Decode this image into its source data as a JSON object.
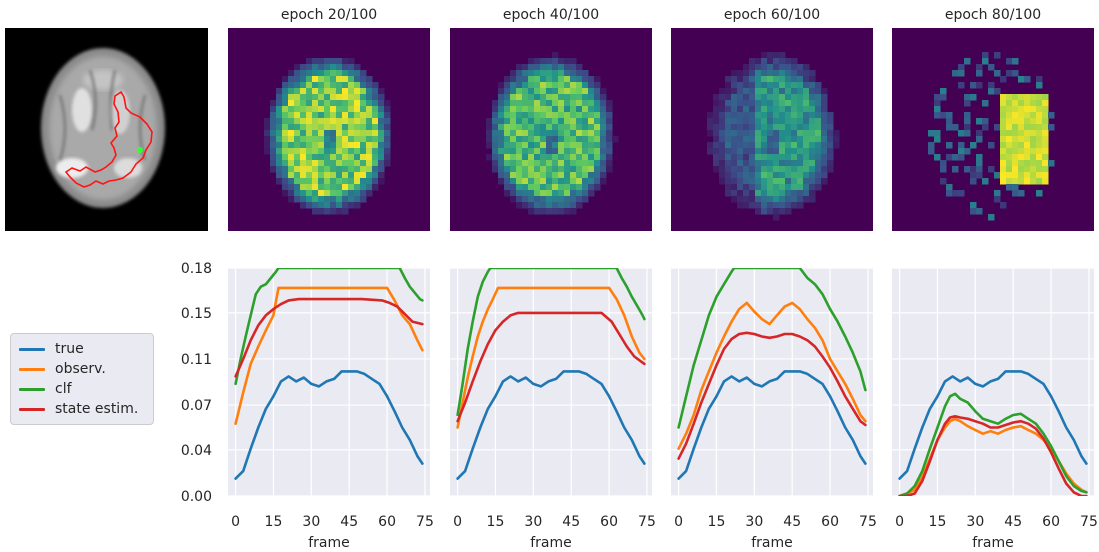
{
  "colors": {
    "true": "#1f77b4",
    "observ": "#ff7f0e",
    "clf": "#2ca02c",
    "state": "#d62728",
    "panel_bg": "#eaeaf2",
    "heat_bg": "#440154",
    "heat_hi": "#fde725"
  },
  "legend": [
    "true",
    "observ.",
    "clf",
    "state estim."
  ],
  "mri": {
    "icons": [
      "brain-mri-image",
      "tumor-contour-red",
      "seed-point-green"
    ]
  },
  "heatmaps": [
    {
      "title": "epoch 20/100"
    },
    {
      "title": "epoch 40/100"
    },
    {
      "title": "epoch 60/100"
    },
    {
      "title": "epoch 80/100"
    }
  ],
  "chart_data": {
    "type": "line",
    "xlabel": "frame",
    "xticks": [
      0,
      15,
      30,
      45,
      60,
      75
    ],
    "xlim": [
      -3,
      77
    ],
    "yticks": [
      "0.00",
      "0.04",
      "0.07",
      "0.11",
      "0.15",
      "0.18"
    ],
    "ytick_values": [
      0.0,
      0.037,
      0.073,
      0.11,
      0.147,
      0.183
    ],
    "ylim": [
      0,
      0.183
    ],
    "grid": true,
    "legend_position": "left",
    "panels": [
      {
        "series": [
          {
            "name": "true",
            "x": [
              0,
              3,
              6,
              9,
              12,
              15,
              18,
              21,
              24,
              27,
              30,
              33,
              36,
              39,
              42,
              45,
              48,
              51,
              54,
              57,
              60,
              63,
              66,
              69,
              72,
              74
            ],
            "y": [
              0.014,
              0.02,
              0.038,
              0.055,
              0.07,
              0.08,
              0.092,
              0.096,
              0.092,
              0.095,
              0.09,
              0.088,
              0.092,
              0.094,
              0.1,
              0.1,
              0.1,
              0.098,
              0.094,
              0.09,
              0.08,
              0.068,
              0.055,
              0.045,
              0.032,
              0.026
            ]
          },
          {
            "name": "observ.",
            "x": [
              0,
              3,
              6,
              9,
              12,
              15,
              17,
              20,
              30,
              40,
              50,
              60,
              63,
              66,
              69,
              72,
              74
            ],
            "y": [
              0.058,
              0.083,
              0.106,
              0.12,
              0.133,
              0.145,
              0.167,
              0.167,
              0.167,
              0.167,
              0.167,
              0.167,
              0.157,
              0.145,
              0.138,
              0.125,
              0.117
            ]
          },
          {
            "name": "clf",
            "x": [
              0,
              2,
              4,
              6,
              8,
              10,
              12,
              14,
              16,
              17,
              65,
              67,
              69,
              71,
              73,
              74
            ],
            "y": [
              0.09,
              0.11,
              0.128,
              0.145,
              0.162,
              0.168,
              0.17,
              0.175,
              0.18,
              0.183,
              0.183,
              0.175,
              0.168,
              0.163,
              0.158,
              0.157
            ]
          },
          {
            "name": "state estim.",
            "x": [
              0,
              3,
              6,
              9,
              12,
              15,
              18,
              21,
              25,
              30,
              40,
              50,
              58,
              61,
              64,
              67,
              70,
              74
            ],
            "y": [
              0.096,
              0.11,
              0.125,
              0.137,
              0.145,
              0.15,
              0.154,
              0.157,
              0.158,
              0.158,
              0.158,
              0.158,
              0.157,
              0.155,
              0.152,
              0.146,
              0.14,
              0.138
            ]
          }
        ]
      },
      {
        "series": [
          {
            "name": "true",
            "x": [
              0,
              3,
              6,
              9,
              12,
              15,
              18,
              21,
              24,
              27,
              30,
              33,
              36,
              39,
              42,
              45,
              48,
              51,
              54,
              57,
              60,
              63,
              66,
              69,
              72,
              74
            ],
            "y": [
              0.014,
              0.02,
              0.038,
              0.055,
              0.07,
              0.08,
              0.092,
              0.096,
              0.092,
              0.095,
              0.09,
              0.088,
              0.092,
              0.094,
              0.1,
              0.1,
              0.1,
              0.098,
              0.094,
              0.09,
              0.08,
              0.068,
              0.055,
              0.045,
              0.032,
              0.026
            ]
          },
          {
            "name": "observ.",
            "x": [
              0,
              2,
              4,
              6,
              8,
              10,
              12,
              14,
              16,
              20,
              30,
              40,
              50,
              60,
              63,
              66,
              69,
              72,
              74
            ],
            "y": [
              0.055,
              0.075,
              0.095,
              0.112,
              0.128,
              0.14,
              0.15,
              0.158,
              0.167,
              0.167,
              0.167,
              0.167,
              0.167,
              0.167,
              0.158,
              0.145,
              0.128,
              0.115,
              0.11
            ]
          },
          {
            "name": "clf",
            "x": [
              0,
              2,
              4,
              6,
              8,
              10,
              12,
              13,
              63,
              65,
              67,
              69,
              71,
              73,
              74
            ],
            "y": [
              0.065,
              0.09,
              0.118,
              0.14,
              0.16,
              0.172,
              0.18,
              0.183,
              0.183,
              0.175,
              0.168,
              0.16,
              0.153,
              0.146,
              0.142
            ]
          },
          {
            "name": "state estim.",
            "x": [
              0,
              3,
              6,
              9,
              12,
              15,
              18,
              21,
              24,
              30,
              40,
              50,
              57,
              61,
              64,
              67,
              70,
              74
            ],
            "y": [
              0.06,
              0.075,
              0.092,
              0.108,
              0.122,
              0.133,
              0.14,
              0.145,
              0.147,
              0.147,
              0.147,
              0.147,
              0.147,
              0.14,
              0.13,
              0.12,
              0.112,
              0.106
            ]
          }
        ]
      },
      {
        "series": [
          {
            "name": "true",
            "x": [
              0,
              3,
              6,
              9,
              12,
              15,
              18,
              21,
              24,
              27,
              30,
              33,
              36,
              39,
              42,
              45,
              48,
              51,
              54,
              57,
              60,
              63,
              66,
              69,
              72,
              74
            ],
            "y": [
              0.014,
              0.02,
              0.038,
              0.055,
              0.07,
              0.08,
              0.092,
              0.096,
              0.092,
              0.095,
              0.09,
              0.088,
              0.092,
              0.094,
              0.1,
              0.1,
              0.1,
              0.098,
              0.094,
              0.09,
              0.08,
              0.068,
              0.055,
              0.045,
              0.032,
              0.026
            ]
          },
          {
            "name": "observ.",
            "x": [
              0,
              3,
              6,
              9,
              12,
              15,
              18,
              21,
              24,
              27,
              30,
              33,
              36,
              39,
              42,
              45,
              48,
              51,
              54,
              57,
              60,
              63,
              66,
              69,
              72,
              74
            ],
            "y": [
              0.038,
              0.05,
              0.065,
              0.085,
              0.1,
              0.115,
              0.128,
              0.14,
              0.15,
              0.155,
              0.148,
              0.142,
              0.138,
              0.145,
              0.152,
              0.155,
              0.15,
              0.142,
              0.135,
              0.125,
              0.11,
              0.1,
              0.09,
              0.078,
              0.065,
              0.06
            ]
          },
          {
            "name": "clf",
            "x": [
              0,
              3,
              6,
              9,
              12,
              15,
              18,
              21,
              22,
              35,
              42,
              48,
              51,
              54,
              57,
              60,
              63,
              66,
              69,
              72,
              74
            ],
            "y": [
              0.055,
              0.08,
              0.105,
              0.125,
              0.145,
              0.16,
              0.17,
              0.18,
              0.183,
              0.183,
              0.183,
              0.183,
              0.175,
              0.17,
              0.162,
              0.15,
              0.14,
              0.128,
              0.115,
              0.1,
              0.085
            ]
          },
          {
            "name": "state estim.",
            "x": [
              0,
              3,
              6,
              9,
              12,
              15,
              18,
              21,
              24,
              27,
              30,
              33,
              36,
              39,
              42,
              45,
              48,
              51,
              54,
              57,
              60,
              63,
              66,
              69,
              72,
              74
            ],
            "y": [
              0.03,
              0.042,
              0.058,
              0.075,
              0.09,
              0.105,
              0.118,
              0.126,
              0.13,
              0.131,
              0.13,
              0.128,
              0.127,
              0.128,
              0.13,
              0.13,
              0.128,
              0.125,
              0.12,
              0.112,
              0.103,
              0.092,
              0.08,
              0.07,
              0.06,
              0.057
            ]
          }
        ]
      },
      {
        "series": [
          {
            "name": "true",
            "x": [
              0,
              3,
              6,
              9,
              12,
              15,
              18,
              21,
              24,
              27,
              30,
              33,
              36,
              39,
              42,
              45,
              48,
              51,
              54,
              57,
              60,
              63,
              66,
              69,
              72,
              74
            ],
            "y": [
              0.014,
              0.02,
              0.038,
              0.055,
              0.07,
              0.08,
              0.092,
              0.096,
              0.092,
              0.095,
              0.09,
              0.088,
              0.092,
              0.094,
              0.1,
              0.1,
              0.1,
              0.098,
              0.094,
              0.09,
              0.08,
              0.068,
              0.055,
              0.045,
              0.032,
              0.026
            ]
          },
          {
            "name": "observ.",
            "x": [
              0,
              3,
              6,
              9,
              12,
              15,
              18,
              20,
              22,
              24,
              27,
              30,
              33,
              36,
              39,
              42,
              45,
              48,
              51,
              54,
              57,
              60,
              63,
              66,
              69,
              72,
              74
            ],
            "y": [
              0.0,
              0.002,
              0.005,
              0.015,
              0.03,
              0.045,
              0.055,
              0.06,
              0.062,
              0.06,
              0.056,
              0.053,
              0.05,
              0.052,
              0.05,
              0.053,
              0.055,
              0.056,
              0.053,
              0.05,
              0.045,
              0.038,
              0.028,
              0.018,
              0.01,
              0.005,
              0.003
            ]
          },
          {
            "name": "clf",
            "x": [
              0,
              3,
              6,
              9,
              12,
              15,
              18,
              20,
              22,
              24,
              27,
              30,
              33,
              36,
              39,
              42,
              45,
              48,
              51,
              54,
              57,
              60,
              63,
              66,
              69,
              72,
              74
            ],
            "y": [
              0.0,
              0.002,
              0.008,
              0.02,
              0.038,
              0.055,
              0.072,
              0.08,
              0.082,
              0.078,
              0.075,
              0.068,
              0.062,
              0.06,
              0.058,
              0.062,
              0.065,
              0.066,
              0.062,
              0.058,
              0.05,
              0.04,
              0.028,
              0.016,
              0.008,
              0.004,
              0.003
            ]
          },
          {
            "name": "state estim.",
            "x": [
              0,
              3,
              6,
              9,
              12,
              15,
              18,
              20,
              22,
              24,
              27,
              30,
              33,
              36,
              39,
              42,
              45,
              48,
              51,
              54,
              57,
              60,
              63,
              66,
              69,
              72,
              74
            ],
            "y": [
              0.0,
              0.0,
              0.002,
              0.012,
              0.028,
              0.045,
              0.058,
              0.063,
              0.064,
              0.063,
              0.062,
              0.06,
              0.058,
              0.055,
              0.055,
              0.057,
              0.059,
              0.06,
              0.058,
              0.054,
              0.046,
              0.035,
              0.022,
              0.01,
              0.003,
              0.0,
              0.0
            ]
          }
        ]
      }
    ]
  }
}
